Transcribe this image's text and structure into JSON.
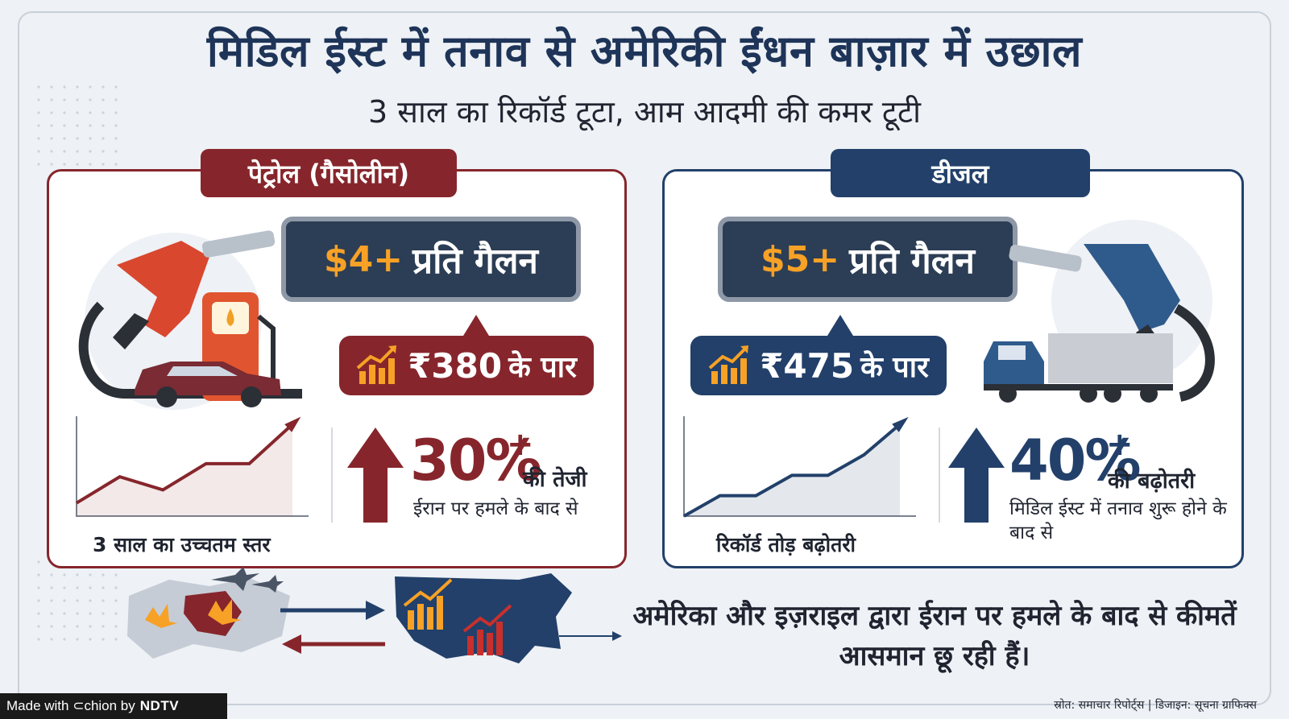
{
  "title": "मिडिल ईस्ट में तनाव से अमेरिकी ईंधन बाज़ार में उछाल",
  "subtitle": "3 साल का रिकॉर्ड टूटा, आम आदमी की कमर टूटी",
  "petrol": {
    "tab_label": "पेट्रोल (गैसोलीन)",
    "usd_price": "$4+",
    "usd_unit": "प्रति गैलन",
    "inr_value": "₹380",
    "inr_suffix": "के पार",
    "chart_label": "3 साल का उच्चतम स्तर",
    "increase_pct": "30%",
    "increase_plus": "+",
    "increase_caption": "की तेजी",
    "increase_note": "ईरान पर हमले के बाद से",
    "trend_values": [
      1,
      3,
      2,
      4,
      4,
      7
    ],
    "accent_color": "#86262c"
  },
  "diesel": {
    "tab_label": "डीजल",
    "usd_price": "$5+",
    "usd_unit": "प्रति गैलन",
    "inr_value": "₹475",
    "inr_suffix": "के पार",
    "chart_label": "रिकॉर्ड तोड़ बढ़ोतरी",
    "increase_pct": "40%",
    "increase_plus": "+",
    "increase_caption": "की बढ़ोतरी",
    "increase_note": "मिडिल ईस्ट में तनाव शुरू होने के बाद से",
    "trend_values": [
      0,
      2,
      2,
      4,
      4,
      6,
      9
    ],
    "accent_color": "#22406a"
  },
  "bottom_text": "अमेरिका और इज़राइल द्वारा ईरान पर हमले के बाद से कीमतें आसमान छू रही हैं।",
  "footer": {
    "made_with": "Made with ⊂chion by",
    "brand": "NDTV",
    "source": "स्रोत: समाचार रिपोर्ट्स | डिजाइन: सूचना ग्राफिक्स"
  },
  "icons": [
    "fuel-nozzle-icon",
    "fuel-pump-icon",
    "car-icon",
    "truck-icon",
    "trending-bars-icon",
    "up-arrow-icon",
    "middle-east-map-icon",
    "usa-map-icon",
    "fighter-jet-icon",
    "explosion-icon"
  ]
}
